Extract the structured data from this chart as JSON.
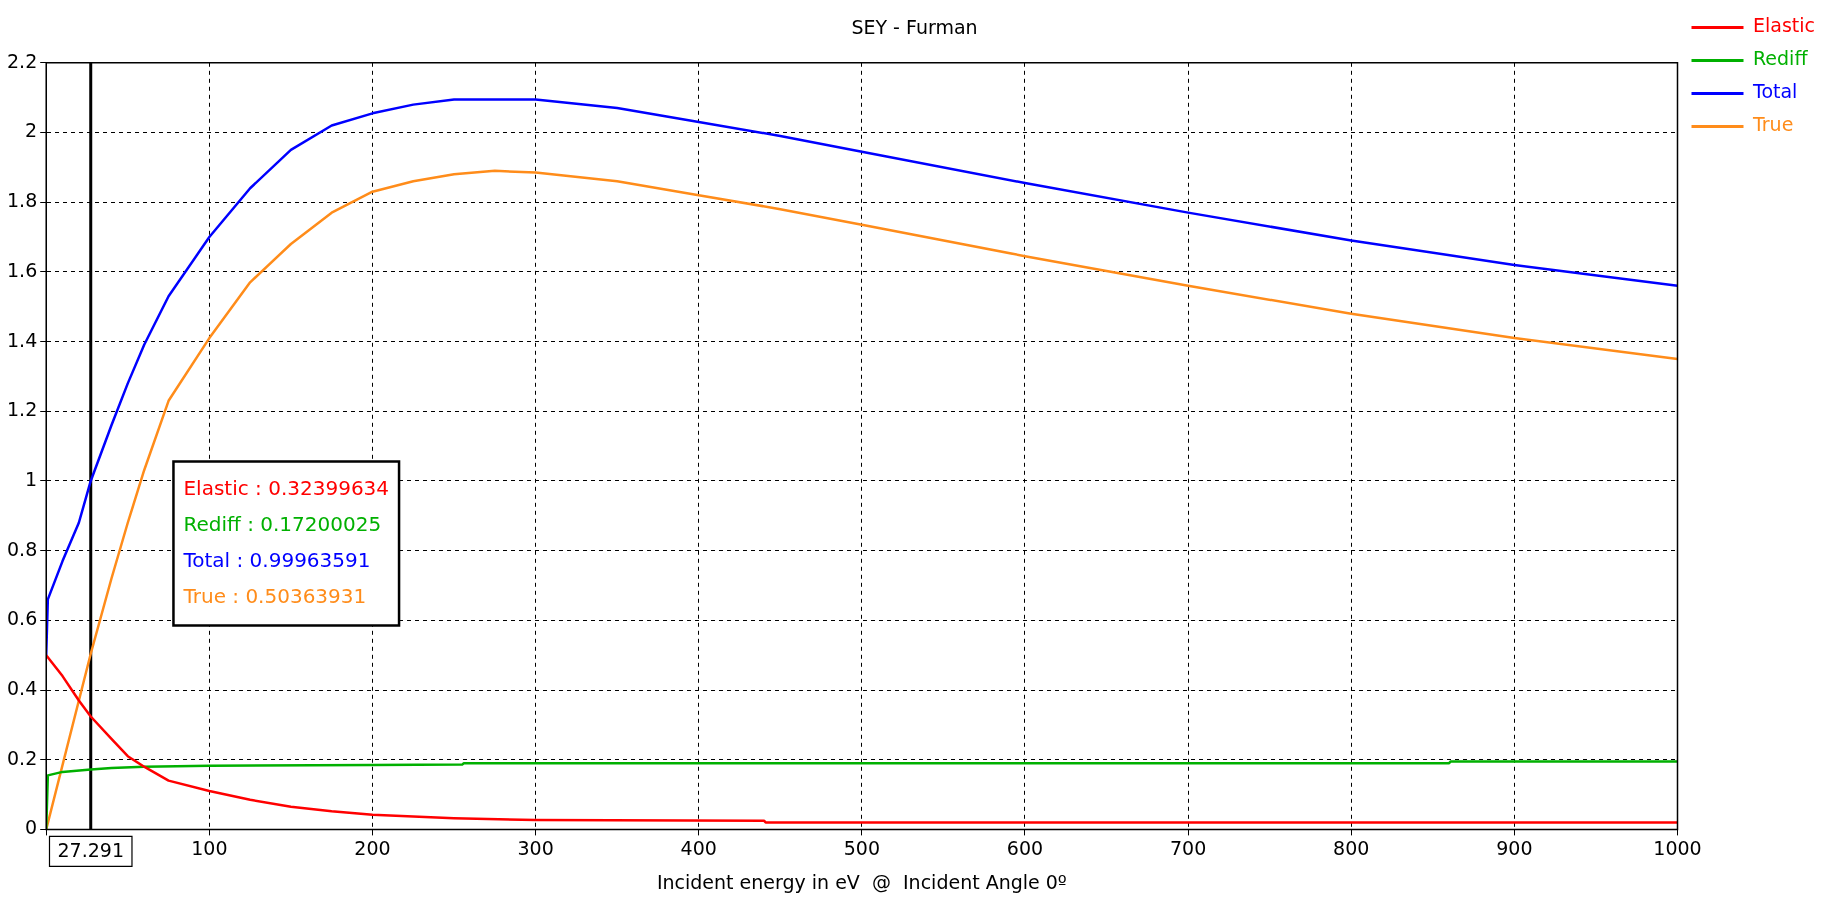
{
  "chart_data": {
    "type": "line",
    "title": "SEY - Furman",
    "xlabel": "Incident energy in eV  @  Incident Angle 0º",
    "xlim": [
      0,
      1000
    ],
    "xticks": [
      {
        "value": 0,
        "label": null
      },
      100,
      200,
      300,
      400,
      500,
      600,
      700,
      800,
      900,
      1000
    ],
    "ylim": [
      0,
      2.2
    ],
    "yticks": [
      0,
      0.2,
      0.4,
      0.6,
      0.8,
      1,
      1.2,
      1.4,
      1.6,
      1.8,
      2,
      2.2
    ],
    "grid": true,
    "legend": "top right",
    "marker": "none",
    "line_style": "solid",
    "ref_lines": [
      {
        "axis": "x",
        "value": 27.291,
        "label": "27.291",
        "color": "#000000"
      }
    ],
    "annotations": [
      "Elastic : 0.32399634",
      "Rediff : 0.17200025",
      "Total : 0.99963591",
      "True : 0.50363931"
    ],
    "series": [
      {
        "name": "Elastic",
        "color": "#ff0000",
        "x": [
          0,
          10,
          20,
          27.291,
          40,
          50,
          60,
          75,
          100,
          125,
          150,
          175,
          200,
          250,
          300,
          440,
          441,
          1000
        ],
        "values": [
          0.5,
          0.44,
          0.37,
          0.324,
          0.26,
          0.21,
          0.18,
          0.14,
          0.11,
          0.085,
          0.065,
          0.052,
          0.042,
          0.032,
          0.027,
          0.025,
          0.02,
          0.02
        ]
      },
      {
        "name": "Rediff",
        "color": "#00b000",
        "x": [
          0,
          1,
          10,
          27.291,
          40,
          60,
          100,
          200,
          255,
          256,
          860,
          861,
          1000
        ],
        "values": [
          0,
          0.155,
          0.165,
          0.172,
          0.176,
          0.18,
          0.183,
          0.185,
          0.186,
          0.19,
          0.19,
          0.195,
          0.195
        ]
      },
      {
        "name": "Total",
        "color": "#0000ff",
        "x": [
          0,
          1,
          10,
          20,
          27.291,
          40,
          50,
          60,
          75,
          100,
          125,
          150,
          175,
          200,
          225,
          250,
          300,
          350,
          400,
          450,
          500,
          600,
          700,
          800,
          900,
          1000
        ],
        "values": [
          0.5,
          0.66,
          0.77,
          0.88,
          1.0,
          1.16,
          1.28,
          1.39,
          1.53,
          1.7,
          1.84,
          1.95,
          2.02,
          2.055,
          2.08,
          2.095,
          2.095,
          2.07,
          2.03,
          1.99,
          1.945,
          1.855,
          1.77,
          1.69,
          1.62,
          1.56
        ]
      },
      {
        "name": "True",
        "color": "#ff8c1a",
        "x": [
          0,
          27.291,
          40,
          50,
          60,
          75,
          100,
          125,
          150,
          175,
          200,
          225,
          250,
          275,
          300,
          350,
          400,
          450,
          500,
          600,
          700,
          800,
          900,
          1000
        ],
        "values": [
          0,
          0.504,
          0.72,
          0.88,
          1.03,
          1.23,
          1.41,
          1.57,
          1.68,
          1.77,
          1.83,
          1.86,
          1.88,
          1.89,
          1.885,
          1.86,
          1.82,
          1.78,
          1.735,
          1.645,
          1.56,
          1.48,
          1.41,
          1.35
        ]
      }
    ]
  }
}
